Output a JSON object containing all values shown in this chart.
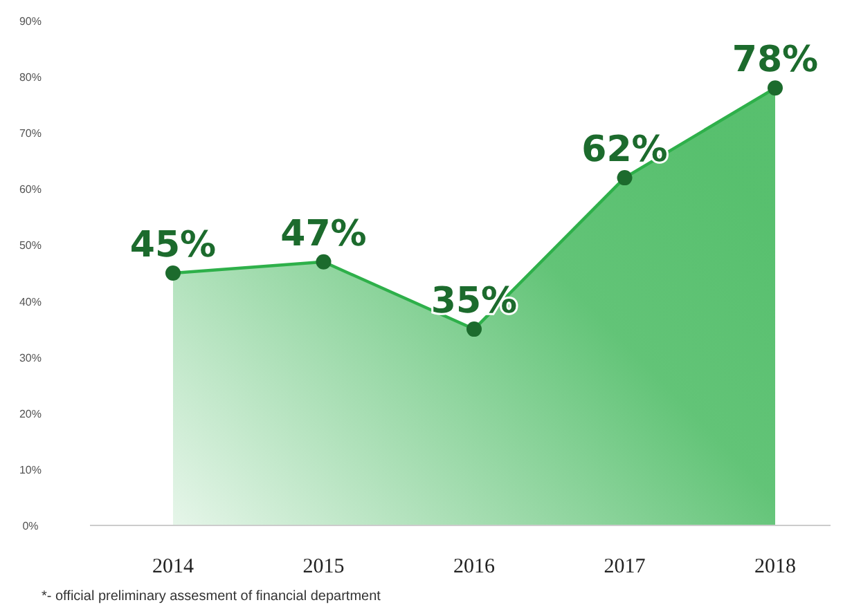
{
  "chart_data": {
    "type": "area",
    "categories": [
      "2014",
      "2015",
      "2016",
      "2017",
      "2018"
    ],
    "series": [
      {
        "color": "#2eb04a",
        "values": [
          45,
          47,
          35,
          62,
          78
        ],
        "value_labels": [
          "45%",
          "47%",
          "35%",
          "62%",
          "78%"
        ]
      }
    ],
    "ylim": [
      0,
      90
    ],
    "yticks": [
      {
        "value": 0,
        "label": "0%"
      },
      {
        "value": 10,
        "label": "10%"
      },
      {
        "value": 20,
        "label": "20%"
      },
      {
        "value": 30,
        "label": "30%"
      },
      {
        "value": 40,
        "label": "40%"
      },
      {
        "value": 50,
        "label": "50%"
      },
      {
        "value": 60,
        "label": "60%"
      },
      {
        "value": 70,
        "label": "70%"
      },
      {
        "value": 80,
        "label": "80%"
      },
      {
        "value": 90,
        "label": "90%"
      }
    ],
    "marker": "circle",
    "grid": false,
    "annotations": [
      "*- official preliminary assesment of financial department"
    ]
  }
}
